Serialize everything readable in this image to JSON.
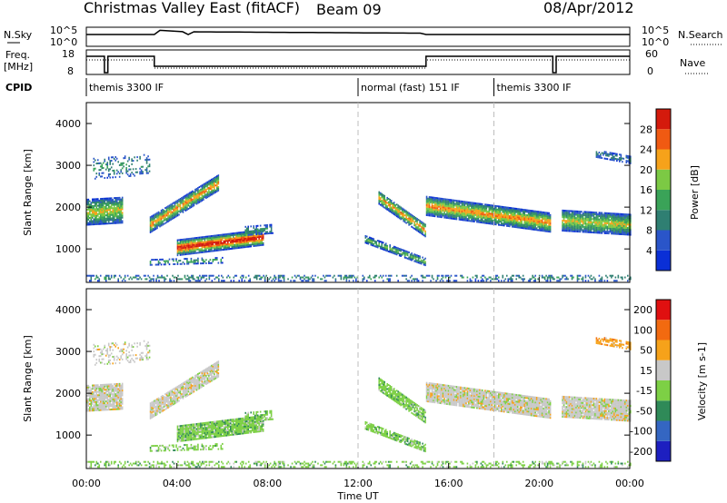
{
  "header": {
    "title": "Christmas Valley East (fitACF)",
    "beam": "Beam 09",
    "date": "08/Apr/2012"
  },
  "aux_panels": {
    "nsky_label": "N.Sky",
    "nsky_ticks": [
      "10^5",
      "10^0"
    ],
    "nsearch_label": "N.Search",
    "nsearch_ticks": [
      "10^5",
      "10^0"
    ],
    "freq_label": "Freq.",
    "freq_unit": "[MHz]",
    "freq_ticks": [
      "18",
      "8"
    ],
    "nave_label": "Nave",
    "nave_ticks": [
      "60",
      "0"
    ],
    "cpid_label": "CPID",
    "modes": [
      {
        "start": 0.0,
        "end": 12.0,
        "label": "themis 3300 IF"
      },
      {
        "start": 12.0,
        "end": 18.0,
        "label": "normal (fast) 151 IF"
      },
      {
        "start": 18.0,
        "end": 24.0,
        "label": "themis 3300 IF"
      }
    ]
  },
  "chart_data": [
    {
      "type": "heatmap",
      "name": "power",
      "ylabel": "Slant Range [km]",
      "ylim": [
        200,
        4500
      ],
      "yticks": [
        1000,
        2000,
        3000,
        4000
      ],
      "colorbar_label": "Power [dB]",
      "colorbar_ticks": [
        4,
        8,
        12,
        16,
        20,
        24,
        28
      ],
      "colorbar_range": [
        0,
        32
      ],
      "colorbar_colors": [
        "#0a2fd6",
        "#2a55c9",
        "#2f7f72",
        "#3aa358",
        "#7cc944",
        "#f6a21a",
        "#f05a12",
        "#d41a0c"
      ]
    },
    {
      "type": "heatmap",
      "name": "velocity",
      "ylabel": "Slant Range [km]",
      "ylim": [
        200,
        4500
      ],
      "yticks": [
        1000,
        2000,
        3000,
        4000
      ],
      "colorbar_label": "Velocity [m s-1]",
      "colorbar_ticks": [
        200,
        100,
        50,
        15,
        -15,
        -50,
        -100,
        -200
      ],
      "colorbar_colors": [
        "#1d1fc0",
        "#3466c2",
        "#2f8a58",
        "#7dd045",
        "#c8c8c8",
        "#f6a21a",
        "#f26a10",
        "#e01010"
      ]
    }
  ],
  "xaxis": {
    "label": "Time UT",
    "ticks": [
      "00:00",
      "04:00",
      "08:00",
      "12:00",
      "16:00",
      "20:00",
      "00:00"
    ],
    "range_hours": [
      0,
      24
    ]
  },
  "colors": {
    "guide": "#bdbdbd"
  }
}
